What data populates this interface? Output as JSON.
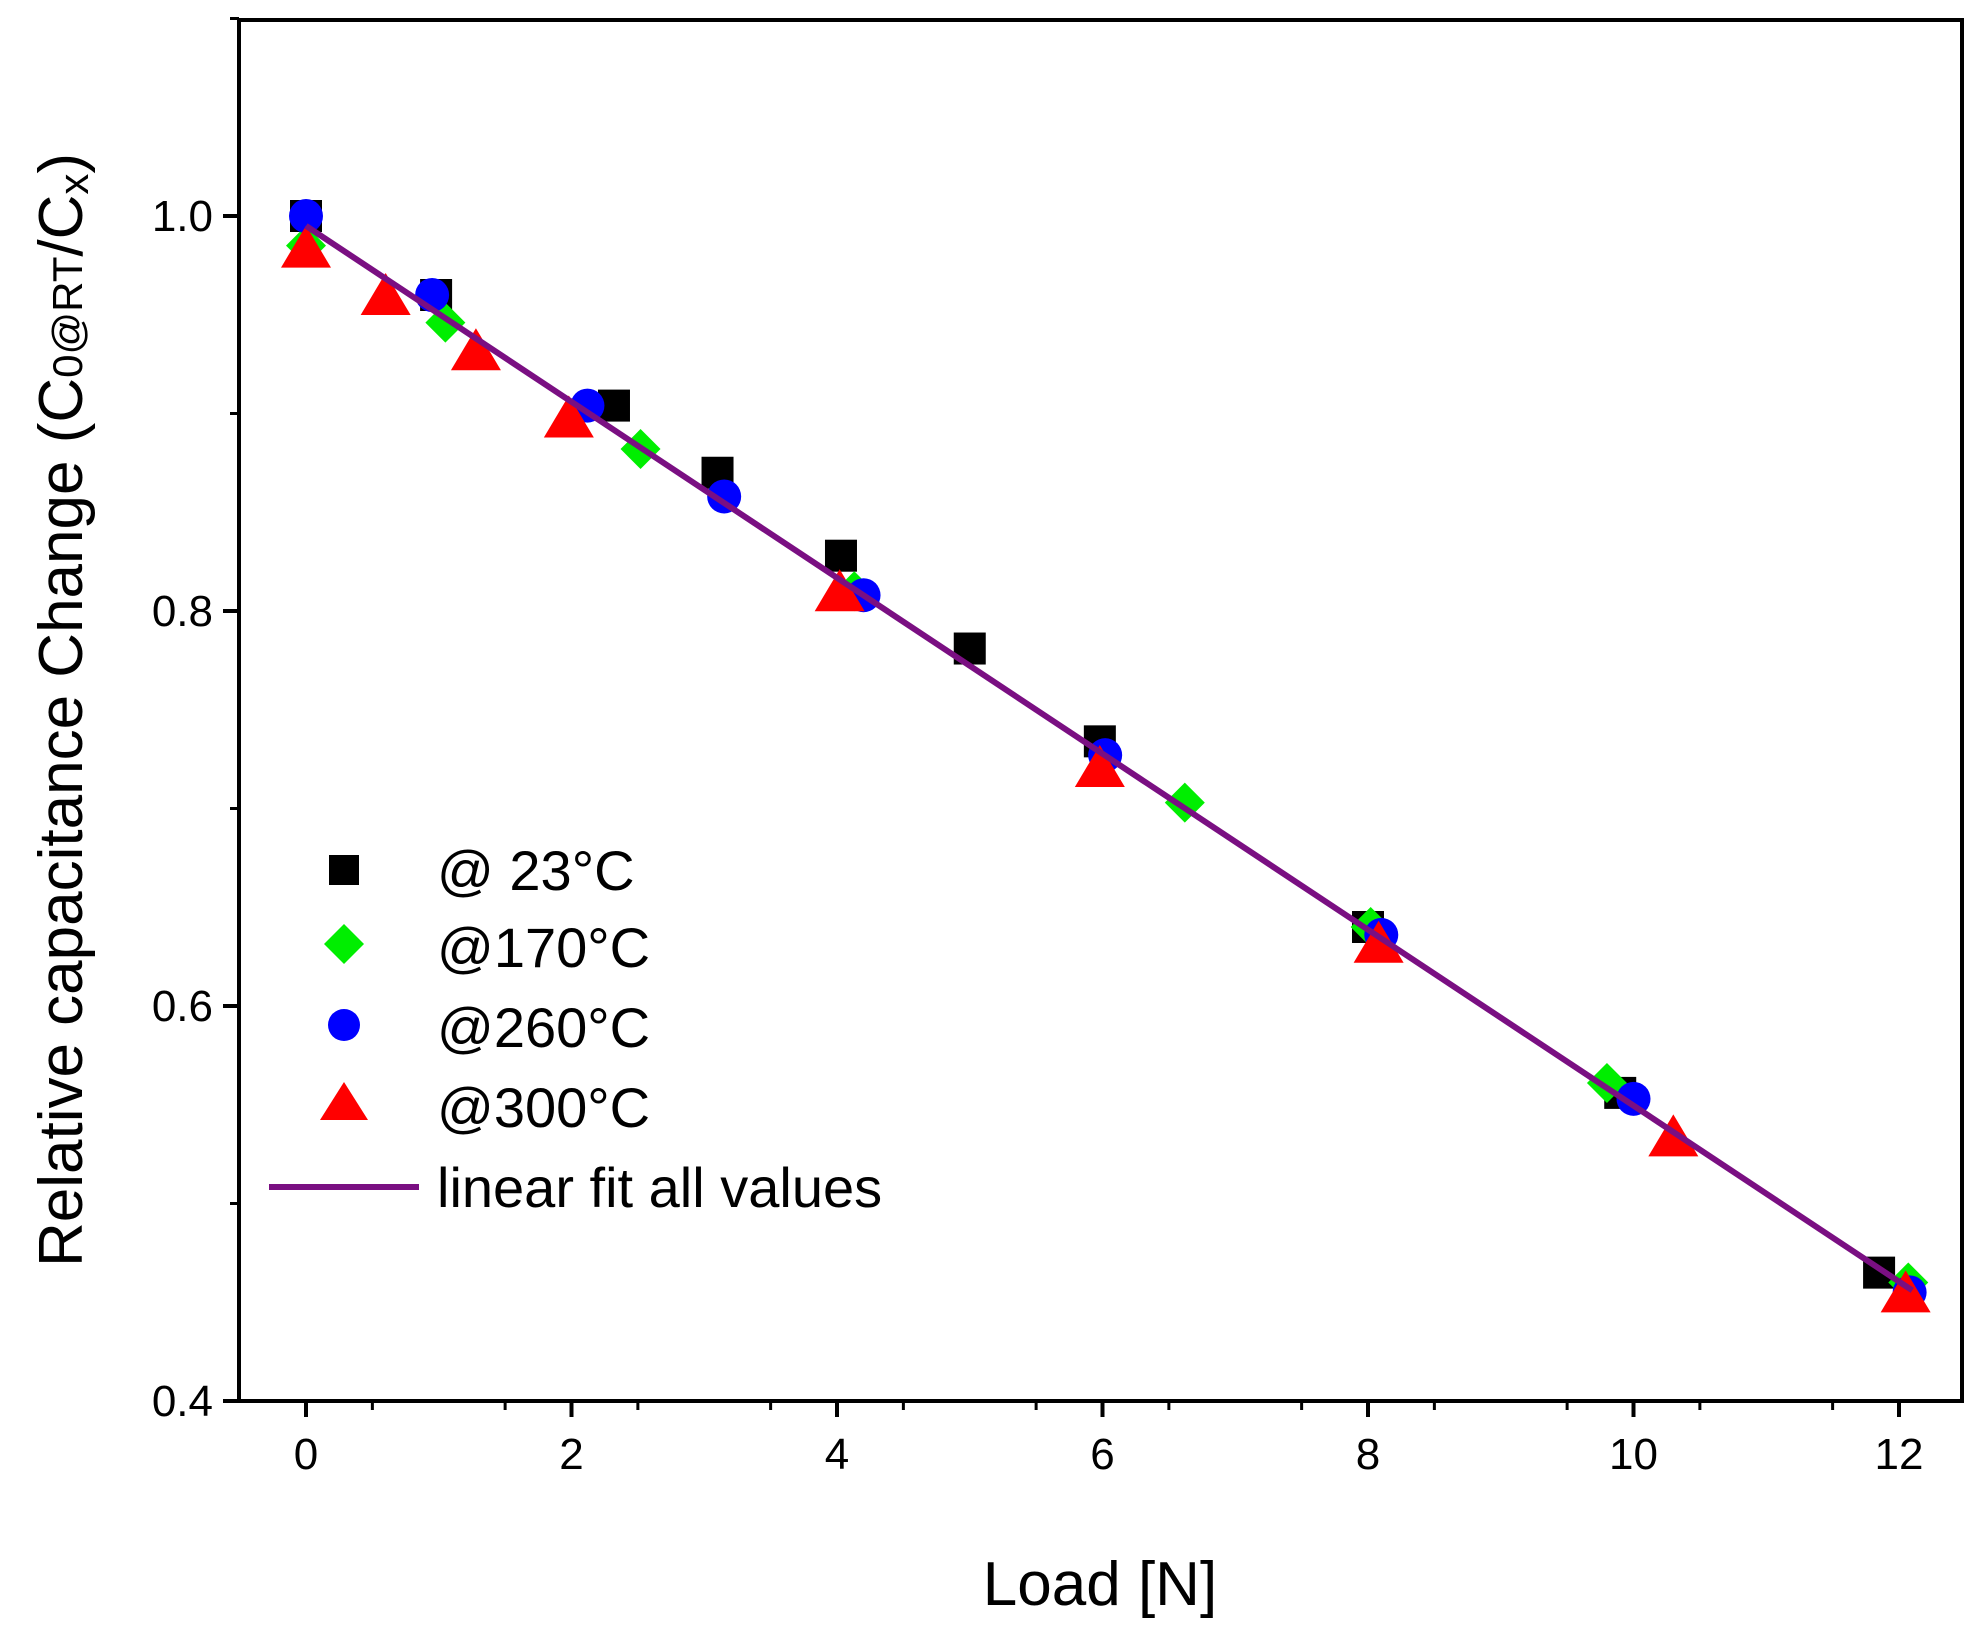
{
  "chart_data": {
    "type": "scatter",
    "title": "",
    "xlabel": "Load [N]",
    "ylabel": {
      "main": "Relative capacitance Change (C",
      "sub1": "0@RT",
      "mid": "/C",
      "sub2": "x",
      "end": ")"
    },
    "xlim": [
      -0.5,
      12.5
    ],
    "ylim": [
      0.4,
      1.1
    ],
    "x_ticks": [
      0,
      2,
      4,
      6,
      8,
      10,
      12
    ],
    "x_tick_labels": [
      "0",
      "2",
      "4",
      "6",
      "8",
      "10",
      "12"
    ],
    "y_ticks": [
      0.4,
      0.6,
      0.8,
      1.0
    ],
    "y_tick_labels": [
      "0.4",
      "0.6",
      "0.8",
      "1.0"
    ],
    "legend_position": "center-left",
    "series": [
      {
        "name": "@ 23°C",
        "marker": "square",
        "color": "#000000",
        "points": [
          [
            0,
            1.0
          ],
          [
            0.98,
            0.96
          ],
          [
            2.32,
            0.904
          ],
          [
            3.1,
            0.87
          ],
          [
            4.03,
            0.828
          ],
          [
            5.0,
            0.781
          ],
          [
            5.98,
            0.734
          ],
          [
            8.0,
            0.64
          ],
          [
            9.9,
            0.556
          ],
          [
            11.85,
            0.465
          ]
        ]
      },
      {
        "name": "@170°C",
        "marker": "diamond",
        "color": "#00ee00",
        "points": [
          [
            0,
            0.985
          ],
          [
            1.05,
            0.946
          ],
          [
            2.52,
            0.882
          ],
          [
            4.13,
            0.81
          ],
          [
            6.62,
            0.703
          ],
          [
            8.02,
            0.64
          ],
          [
            9.8,
            0.561
          ],
          [
            12.07,
            0.46
          ]
        ]
      },
      {
        "name": "@260°C",
        "marker": "circle",
        "color": "#0000ff",
        "points": [
          [
            0,
            1.0
          ],
          [
            0.95,
            0.96
          ],
          [
            2.12,
            0.904
          ],
          [
            3.15,
            0.858
          ],
          [
            4.2,
            0.808
          ],
          [
            6.02,
            0.727
          ],
          [
            8.1,
            0.636
          ],
          [
            10.0,
            0.553
          ],
          [
            12.08,
            0.455
          ]
        ]
      },
      {
        "name": "@300°C",
        "marker": "triangle",
        "color": "#ff0000",
        "points": [
          [
            0,
            0.984
          ],
          [
            0.6,
            0.96
          ],
          [
            1.28,
            0.932
          ],
          [
            1.98,
            0.898
          ],
          [
            4.02,
            0.81
          ],
          [
            5.98,
            0.721
          ],
          [
            8.08,
            0.632
          ],
          [
            10.3,
            0.534
          ],
          [
            12.05,
            0.455
          ]
        ]
      }
    ],
    "fit": {
      "name": "linear fit all values",
      "color": "#7a0f82",
      "x": [
        0,
        12.1
      ],
      "y": [
        0.995,
        0.456
      ]
    }
  }
}
